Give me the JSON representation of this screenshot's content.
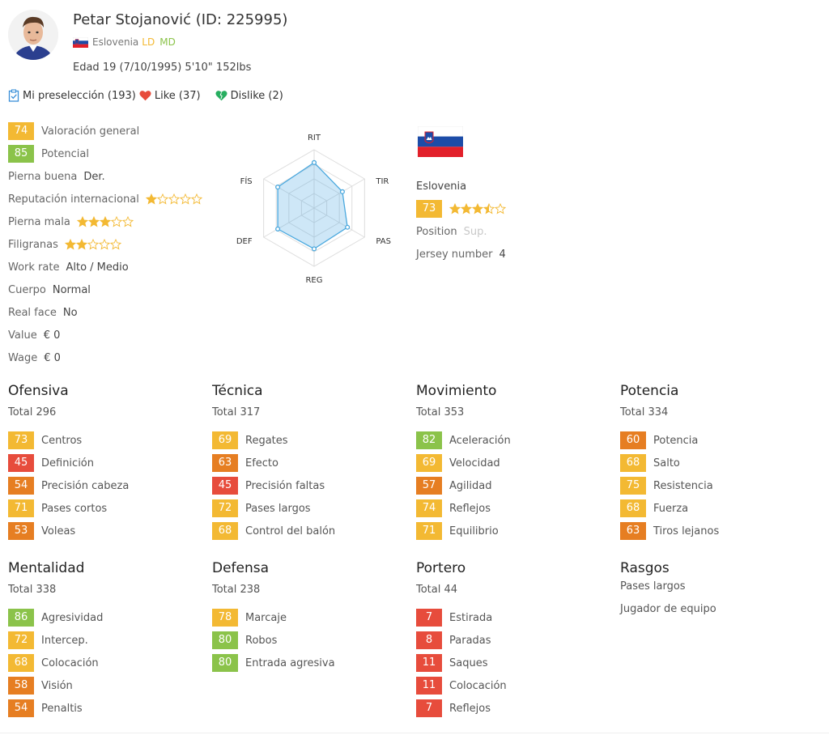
{
  "player": {
    "name": "Petar Stojanović (ID: 225995)",
    "nation": "Eslovenia",
    "positions": [
      "LD",
      "MD"
    ],
    "age_line": "Edad 19 (7/10/1995) 5'10\" 152lbs"
  },
  "actions": {
    "shortlist": "Mi preselección (193)",
    "like": "Like (37)",
    "dislike": "Dislike (2)"
  },
  "info": {
    "overall": {
      "value": "74",
      "label": "Valoración general",
      "color": "#f3b933"
    },
    "potential": {
      "value": "85",
      "label": "Potencial",
      "color": "#8bc34a"
    },
    "preferred_foot": {
      "label": "Pierna buena",
      "value": "Der."
    },
    "intl_rep": {
      "label": "Reputación internacional",
      "stars": 1
    },
    "weak_foot": {
      "label": "Pierna mala",
      "stars": 3
    },
    "skill_moves": {
      "label": "Filigranas",
      "stars": 2
    },
    "work_rate": {
      "label": "Work rate",
      "value": "Alto / Medio"
    },
    "body": {
      "label": "Cuerpo",
      "value": "Normal"
    },
    "real_face": {
      "label": "Real face",
      "value": "No"
    },
    "value": {
      "label": "Value",
      "value": "€ 0"
    },
    "wage": {
      "label": "Wage",
      "value": "€ 0"
    }
  },
  "radar": {
    "labels": [
      "RIT",
      "TIR",
      "PAS",
      "REG",
      "DEF",
      "FÍS"
    ],
    "values": [
      78,
      56,
      66,
      70,
      72,
      72
    ],
    "max": 100
  },
  "country": {
    "name": "Eslovenia",
    "rating": "73",
    "rating_color": "#f3b933",
    "stars": 3.5,
    "position_label": "Position",
    "position_value": "Sup.",
    "jersey_label": "Jersey number",
    "jersey_value": "4"
  },
  "colors": {
    "green": "#8bc34a",
    "yellow": "#f3b933",
    "orange": "#e67e22",
    "red": "#e74c3c"
  },
  "sections": [
    {
      "title": "Ofensiva",
      "total": "Total 296",
      "stats": [
        {
          "v": "73",
          "n": "Centros"
        },
        {
          "v": "45",
          "n": "Definición"
        },
        {
          "v": "54",
          "n": "Precisión cabeza"
        },
        {
          "v": "71",
          "n": "Pases cortos"
        },
        {
          "v": "53",
          "n": "Voleas"
        }
      ]
    },
    {
      "title": "Técnica",
      "total": "Total 317",
      "stats": [
        {
          "v": "69",
          "n": "Regates"
        },
        {
          "v": "63",
          "n": "Efecto"
        },
        {
          "v": "45",
          "n": "Precisión faltas"
        },
        {
          "v": "72",
          "n": "Pases largos"
        },
        {
          "v": "68",
          "n": "Control del balón"
        }
      ]
    },
    {
      "title": "Movimiento",
      "total": "Total 353",
      "stats": [
        {
          "v": "82",
          "n": "Aceleración"
        },
        {
          "v": "69",
          "n": "Velocidad"
        },
        {
          "v": "57",
          "n": "Agilidad"
        },
        {
          "v": "74",
          "n": "Reflejos"
        },
        {
          "v": "71",
          "n": "Equilibrio"
        }
      ]
    },
    {
      "title": "Potencia",
      "total": "Total 334",
      "stats": [
        {
          "v": "60",
          "n": "Potencia"
        },
        {
          "v": "68",
          "n": "Salto"
        },
        {
          "v": "75",
          "n": "Resistencia"
        },
        {
          "v": "68",
          "n": "Fuerza"
        },
        {
          "v": "63",
          "n": "Tiros lejanos"
        }
      ]
    },
    {
      "title": "Mentalidad",
      "total": "Total 338",
      "stats": [
        {
          "v": "86",
          "n": "Agresividad"
        },
        {
          "v": "72",
          "n": "Intercep."
        },
        {
          "v": "68",
          "n": "Colocación"
        },
        {
          "v": "58",
          "n": "Visión"
        },
        {
          "v": "54",
          "n": "Penaltis"
        }
      ]
    },
    {
      "title": "Defensa",
      "total": "Total 238",
      "stats": [
        {
          "v": "78",
          "n": "Marcaje"
        },
        {
          "v": "80",
          "n": "Robos"
        },
        {
          "v": "80",
          "n": "Entrada agresiva"
        }
      ]
    },
    {
      "title": "Portero",
      "total": "Total 44",
      "stats": [
        {
          "v": "7",
          "n": "Estirada"
        },
        {
          "v": "8",
          "n": "Paradas"
        },
        {
          "v": "11",
          "n": "Saques"
        },
        {
          "v": "11",
          "n": "Colocación"
        },
        {
          "v": "7",
          "n": "Reflejos"
        }
      ]
    }
  ],
  "traits": {
    "title": "Rasgos",
    "items": [
      "Pases largos",
      "Jugador de equipo"
    ]
  }
}
